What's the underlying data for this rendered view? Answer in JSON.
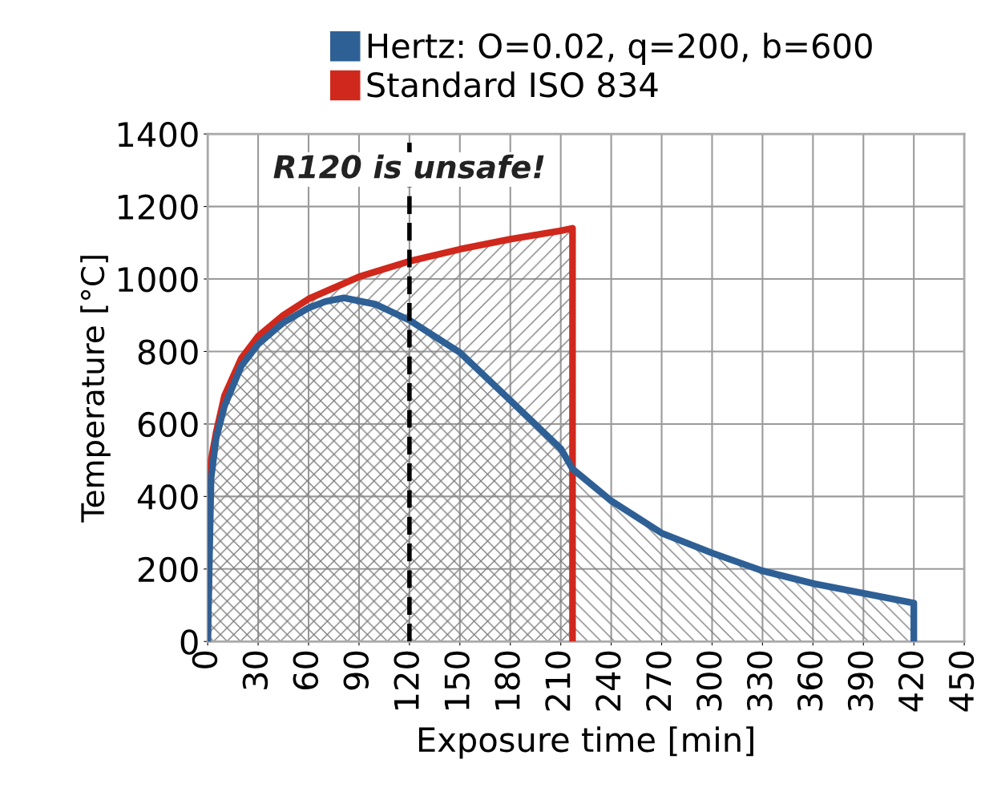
{
  "chart_data": {
    "type": "area",
    "xlabel": "Exposure time [min]",
    "ylabel": "Temperature [°C]",
    "xlim": [
      0,
      450
    ],
    "xticks": [
      0,
      30,
      60,
      90,
      120,
      150,
      180,
      210,
      240,
      270,
      300,
      330,
      360,
      390,
      420,
      450
    ],
    "ylim": [
      0,
      1400
    ],
    "yticks": [
      0,
      200,
      400,
      600,
      800,
      1000,
      1200,
      1400
    ],
    "grid": true,
    "legend": "top",
    "marker": "none",
    "line_style": "solid",
    "series": [
      {
        "name": "Hertz: O=0.02, q=200, b=600",
        "color": "#2e6096",
        "x": [
          0,
          2,
          5,
          10,
          20,
          30,
          45,
          60,
          70,
          81,
          100,
          120,
          150,
          180,
          210,
          217,
          240,
          270,
          300,
          330,
          360,
          390,
          420,
          420
        ],
        "values": [
          0,
          450,
          560,
          650,
          760,
          820,
          880,
          920,
          938,
          948,
          930,
          886,
          797,
          665,
          532,
          476,
          388,
          299,
          244,
          195,
          160,
          133,
          106,
          0
        ]
      },
      {
        "name": "Standard ISO 834",
        "color": "#d0281c",
        "x": [
          0,
          1,
          2,
          5,
          10,
          20,
          30,
          45,
          60,
          90,
          120,
          150,
          180,
          210,
          217,
          217
        ],
        "values": [
          0,
          300,
          500,
          576,
          678,
          781,
          842,
          900,
          945,
          1006,
          1049,
          1082,
          1110,
          1133,
          1140,
          0
        ]
      }
    ],
    "ref_lines": [
      {
        "axis": "x",
        "value": 120,
        "color": "#000000",
        "line_style": "dashed"
      }
    ],
    "annotations": [
      "R120 is unsafe!"
    ]
  }
}
